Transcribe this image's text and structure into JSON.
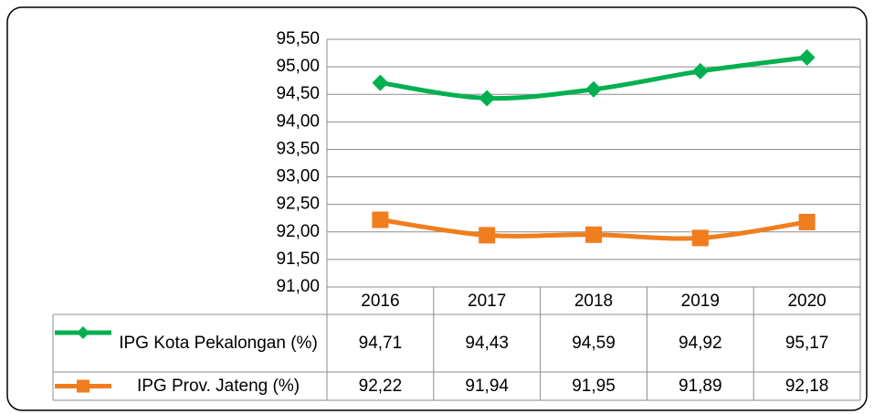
{
  "chart_data": {
    "type": "line",
    "categories": [
      "2016",
      "2017",
      "2018",
      "2019",
      "2020"
    ],
    "series": [
      {
        "name": "IPG Kota Pekalongan (%)",
        "color": "#00b050",
        "marker": "diamond",
        "values": [
          94.71,
          94.43,
          94.59,
          94.92,
          95.17
        ],
        "value_labels": [
          "94,71",
          "94,43",
          "94,59",
          "94,92",
          "95,17"
        ]
      },
      {
        "name": "IPG Prov. Jateng (%)",
        "color": "#f07d1e",
        "marker": "square",
        "values": [
          92.22,
          91.94,
          91.95,
          91.89,
          92.18
        ],
        "value_labels": [
          "92,22",
          "91,94",
          "91,95",
          "91,89",
          "92,18"
        ]
      }
    ],
    "ylim": [
      91,
      95.5
    ],
    "yticks": [
      {
        "value": 91,
        "label": "91,00"
      },
      {
        "value": 91.5,
        "label": "91,50"
      },
      {
        "value": 92,
        "label": "92,00"
      },
      {
        "value": 92.5,
        "label": "92,50"
      },
      {
        "value": 93,
        "label": "93,00"
      },
      {
        "value": 93.5,
        "label": "93,50"
      },
      {
        "value": 94,
        "label": "94,00"
      },
      {
        "value": 94.5,
        "label": "94,50"
      },
      {
        "value": 95,
        "label": "95,00"
      },
      {
        "value": 95.5,
        "label": "95,50"
      }
    ],
    "grid": true
  }
}
